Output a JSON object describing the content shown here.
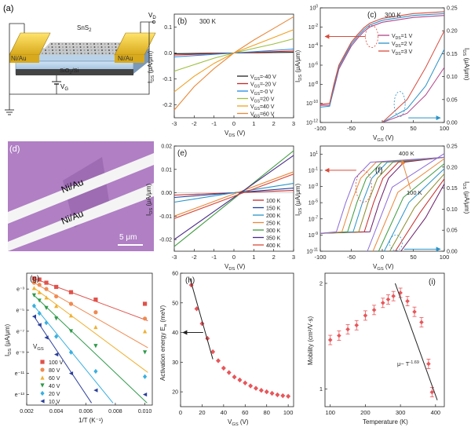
{
  "figure_panels": [
    "(a)",
    "(b)",
    "(c)",
    "(d)",
    "(e)",
    "(f)",
    "(g)",
    "(h)",
    "(i)"
  ],
  "device": {
    "material": "SnS",
    "material_sub": "2",
    "contact_left": "Ni/Au",
    "contact_right": "Ni/Au",
    "substrate": "SiO",
    "substrate_sub": "2",
    "substrate_tail": "/Si",
    "drain_label": "V",
    "drain_sub": "D",
    "gate_label": "V",
    "gate_sub": "G"
  },
  "micrograph": {
    "electrode_top": "Ni/Au",
    "electrode_bottom": "Ni/Au",
    "scale_bar": "5 μm",
    "background_color": "#b07fc4"
  },
  "chart_data": [
    {
      "panel": "(b)",
      "type": "line",
      "annotation": "300 K",
      "xlabel": "V_DS (V)",
      "ylabel": "I_DS (μA/μm)",
      "xlim": [
        -3,
        3
      ],
      "ylim": [
        -0.25,
        0.15
      ],
      "xticks": [
        -3,
        -2,
        -1,
        0,
        1,
        2,
        3
      ],
      "yticks": [
        -0.2,
        -0.1,
        0.0,
        0.1
      ],
      "legend_position": "bottom-right",
      "series": [
        {
          "name": "V_GS=-40 V",
          "color": "#222222",
          "x": [
            -3,
            0,
            3
          ],
          "y": [
            -0.003,
            0,
            0.003
          ]
        },
        {
          "name": "V_GS=-20 V",
          "color": "#c62828",
          "x": [
            -3,
            0,
            3
          ],
          "y": [
            -0.008,
            0,
            0.008
          ]
        },
        {
          "name": "V_GS=-0 V",
          "color": "#1e88e5",
          "x": [
            -3,
            0,
            3
          ],
          "y": [
            -0.015,
            0,
            0.015
          ]
        },
        {
          "name": "V_GS=20 V",
          "color": "#9bbf3c",
          "x": [
            -3,
            -2,
            -1,
            0,
            1,
            2,
            3
          ],
          "y": [
            -0.07,
            -0.045,
            -0.02,
            0,
            0.018,
            0.035,
            0.055
          ]
        },
        {
          "name": "V_GS=40 V",
          "color": "#f0a020",
          "x": [
            -3,
            -2,
            -1,
            0,
            1,
            2,
            3
          ],
          "y": [
            -0.15,
            -0.09,
            -0.04,
            0,
            0.03,
            0.06,
            0.09
          ]
        },
        {
          "name": "V_GS=60 V",
          "color": "#e8883a",
          "x": [
            -3,
            -2,
            -1,
            0,
            1,
            2,
            3
          ],
          "y": [
            -0.22,
            -0.13,
            -0.06,
            0,
            0.05,
            0.095,
            0.14
          ]
        }
      ]
    },
    {
      "panel": "(c)",
      "type": "line",
      "annotation": "300 K",
      "xlabel": "V_GS (V)",
      "ylabel": "I_DS (μA/μm)",
      "ylabel_right": "I_DS (μA/μm)",
      "xlim": [
        -100,
        100
      ],
      "ylim_log": [
        -12,
        0
      ],
      "ylim_right": [
        0,
        0.25
      ],
      "xticks": [
        -100,
        -50,
        0,
        50,
        100
      ],
      "yticks_log": [
        -12,
        -10,
        -8,
        -6,
        -4,
        -2,
        0
      ],
      "yticks_right": [
        0.0,
        0.05,
        0.1,
        0.15,
        0.2,
        0.25
      ],
      "legend_position": "top-right",
      "series": [
        {
          "name": "V_DS=1 V",
          "color": "#b0458a",
          "x": [
            -100,
            -85,
            -78,
            -70,
            -60,
            -50,
            -40,
            -30,
            -20,
            0,
            50,
            100
          ],
          "y": [
            -10.2,
            -10.2,
            -8.5,
            -6.4,
            -5.2,
            -4.0,
            -3.2,
            -2.5,
            -2.0,
            -1.5,
            -1.0,
            -0.8
          ]
        },
        {
          "name": "V_DS=2 V",
          "color": "#2a93c8",
          "x": [
            -100,
            -85,
            -78,
            -70,
            -60,
            -50,
            -40,
            -30,
            -20,
            0,
            50,
            100
          ],
          "y": [
            -10.4,
            -10.3,
            -8.3,
            -6.2,
            -5.0,
            -3.8,
            -3.0,
            -2.3,
            -1.8,
            -1.3,
            -0.8,
            -0.6
          ]
        },
        {
          "name": "V_DS=3 V",
          "color": "#d84b3c",
          "x": [
            -100,
            -85,
            -78,
            -70,
            -60,
            -50,
            -40,
            -30,
            -20,
            0,
            50,
            100
          ],
          "y": [
            -10.1,
            -10.0,
            -8.0,
            -6.0,
            -4.8,
            -3.6,
            -2.8,
            -2.1,
            -1.6,
            -1.1,
            -0.6,
            -0.4
          ]
        }
      ]
    },
    {
      "panel": "(e)",
      "type": "line",
      "xlabel": "V_DS (V)",
      "ylabel": "I_DS (μA/μm)",
      "xlim": [
        -3,
        3
      ],
      "ylim": [
        -0.025,
        0.02
      ],
      "xticks": [
        -3,
        -2,
        -1,
        0,
        1,
        2,
        3
      ],
      "yticks": [
        -0.02,
        -0.01,
        0.0,
        0.01,
        0.02
      ],
      "legend_position": "bottom-right",
      "series": [
        {
          "name": "100 K",
          "color": "#c62828",
          "x": [
            -3,
            3
          ],
          "y": [
            -0.001,
            0.001
          ]
        },
        {
          "name": "150 K",
          "color": "#1e3fa0",
          "x": [
            -3,
            3
          ],
          "y": [
            -0.002,
            0.002
          ]
        },
        {
          "name": "200 K",
          "color": "#2a93c8",
          "x": [
            -3,
            3
          ],
          "y": [
            -0.004,
            0.004
          ]
        },
        {
          "name": "250 K",
          "color": "#e8883a",
          "x": [
            -3,
            3
          ],
          "y": [
            -0.01,
            0.009
          ]
        },
        {
          "name": "300 K",
          "color": "#3c9a3c",
          "x": [
            -3,
            3
          ],
          "y": [
            -0.023,
            0.018
          ]
        },
        {
          "name": "350 K",
          "color": "#4a2a8a",
          "x": [
            -3,
            3
          ],
          "y": [
            -0.02,
            0.016
          ]
        },
        {
          "name": "400 K",
          "color": "#d84b3c",
          "x": [
            -3,
            3
          ],
          "y": [
            -0.011,
            0.008
          ]
        }
      ]
    },
    {
      "panel": "(f)",
      "type": "line",
      "xlabel": "V_GS (V)",
      "ylabel": "I_DS (μA/μm)",
      "ylabel_right": "I_DS (μA/μm)",
      "xlim": [
        -100,
        100
      ],
      "ylim_log": [
        -11,
        2
      ],
      "ylim_right": [
        0,
        0.25
      ],
      "xticks": [
        -100,
        -50,
        0,
        50,
        100
      ],
      "yticks_log": [
        -11,
        -9,
        -7,
        -5,
        -3,
        -1,
        1
      ],
      "yticks_right": [
        0.0,
        0.05,
        0.1,
        0.15,
        0.2,
        0.25
      ],
      "annotations": [
        "400 K",
        "100 K"
      ],
      "series_temperatures": [
        "100 K",
        "150 K",
        "200 K",
        "250 K",
        "300 K",
        "350 K",
        "400 K"
      ]
    },
    {
      "panel": "(g)",
      "type": "scatter",
      "xlabel": "1/T (K⁻¹)",
      "ylabel": "I_DS (μA/μm)",
      "xlim": [
        0.002,
        0.0105
      ],
      "xticks": [
        0.002,
        0.004,
        0.006,
        0.008,
        0.01
      ],
      "yticks": [
        "e⁻¹³",
        "e⁻¹¹",
        "e⁻⁹",
        "e⁻⁷",
        "e⁻⁵",
        "e⁻³"
      ],
      "legend_title": "V_GS",
      "legend_position": "left",
      "series": [
        {
          "name": "100 V",
          "color": "#e0524a",
          "marker": "square",
          "x": [
            0.0025,
            0.00286,
            0.00333,
            0.004,
            0.005,
            0.00667,
            0.01
          ],
          "y": [
            -2.0,
            -2.1,
            -2.4,
            -2.8,
            -3.3,
            -4.0,
            -4.4
          ]
        },
        {
          "name": "80 V",
          "color": "#f08a50",
          "marker": "circle",
          "x": [
            0.0025,
            0.00286,
            0.00333,
            0.004,
            0.005,
            0.00667,
            0.01
          ],
          "y": [
            -2.4,
            -2.6,
            -3.0,
            -3.7,
            -4.4,
            -5.2,
            -5.8
          ]
        },
        {
          "name": "60 V",
          "color": "#f0b030",
          "marker": "triangle-up",
          "x": [
            0.0025,
            0.00286,
            0.00333,
            0.004,
            0.005,
            0.00667,
            0.01
          ],
          "y": [
            -2.9,
            -3.3,
            -3.8,
            -4.6,
            -5.5,
            -6.6,
            -7.0
          ]
        },
        {
          "name": "40 V",
          "color": "#2e9a4a",
          "marker": "triangle-down",
          "x": [
            0.0025,
            0.00286,
            0.00333,
            0.004,
            0.005,
            0.00667,
            0.01
          ],
          "y": [
            -3.6,
            -4.1,
            -4.8,
            -5.8,
            -7.0,
            -8.4,
            -9.0
          ]
        },
        {
          "name": "20 V",
          "color": "#3ab0e0",
          "marker": "diamond",
          "x": [
            0.0025,
            0.00286,
            0.00333,
            0.004,
            0.005,
            0.00667,
            0.01
          ],
          "y": [
            -4.6,
            -5.3,
            -6.2,
            -7.5,
            -9.0,
            -10.8,
            -11.3
          ]
        },
        {
          "name": "10 V",
          "color": "#2a3f9a",
          "marker": "triangle-left",
          "x": [
            0.0025,
            0.00286,
            0.00333,
            0.004,
            0.005,
            0.00667,
            0.01
          ],
          "y": [
            -5.6,
            -6.4,
            -7.6,
            -9.2,
            -11.0,
            -12.6,
            -13.0
          ]
        }
      ]
    },
    {
      "panel": "(h)",
      "type": "scatter",
      "xlabel": "V_GS (V)",
      "ylabel": "Activation energy E_a (meV)",
      "xlim": [
        0,
        105
      ],
      "ylim": [
        15,
        60
      ],
      "xticks": [
        0,
        20,
        40,
        60,
        80,
        100
      ],
      "yticks": [
        20,
        30,
        40,
        50,
        60
      ],
      "marker_color": "#e8565a",
      "x": [
        10,
        15,
        20,
        25,
        30,
        35,
        40,
        45,
        50,
        55,
        60,
        65,
        70,
        75,
        80,
        85,
        90,
        95,
        100
      ],
      "y": [
        56,
        48,
        43,
        38,
        33.5,
        30.5,
        28,
        26.5,
        25,
        24,
        23,
        22,
        21.2,
        20.5,
        20,
        19.5,
        19,
        18.7,
        18.5
      ]
    },
    {
      "panel": "(i)",
      "type": "scatter",
      "xlabel": "Temperature (K)",
      "ylabel": "Mobility (cm²/V·s)",
      "xlim": [
        85,
        425
      ],
      "ylim_log10": [
        -0.05,
        0.33
      ],
      "xticks": [
        100,
        200,
        300,
        400
      ],
      "yticks": [
        1,
        2
      ],
      "annotation": "μ~ T^-1.69",
      "marker_color": "#e8565a",
      "x": [
        100,
        125,
        150,
        175,
        200,
        225,
        250,
        265,
        280,
        300,
        320,
        340,
        360,
        380,
        390
      ],
      "y": [
        1.38,
        1.42,
        1.48,
        1.52,
        1.62,
        1.68,
        1.76,
        1.8,
        1.84,
        1.88,
        1.78,
        1.66,
        1.55,
        1.18,
        0.98
      ]
    }
  ]
}
